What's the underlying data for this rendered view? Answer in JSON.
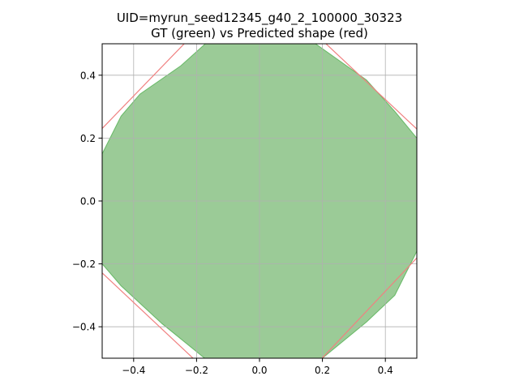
{
  "chart_data": {
    "type": "area",
    "title_lines": [
      "UID=myrun_seed12345_g40_2_100000_30323",
      "GT (green) vs Predicted shape (red)"
    ],
    "xlabel": "",
    "ylabel": "",
    "xlim": [
      -0.5,
      0.5
    ],
    "ylim": [
      -0.5,
      0.5
    ],
    "grid": true,
    "x_ticks": [
      -0.4,
      -0.2,
      0.0,
      0.2,
      0.4
    ],
    "y_ticks": [
      -0.4,
      -0.2,
      0.0,
      0.2,
      0.4
    ],
    "x_tick_labels": [
      "−0.4",
      "−0.2",
      "0.0",
      "0.2",
      "0.4"
    ],
    "y_tick_labels": [
      "−0.4",
      "−0.2",
      "0.0",
      "0.2",
      "0.4"
    ],
    "series": [
      {
        "role": "ground-truth",
        "style": "filled",
        "color": "#2ca02c",
        "fill_color": "#9bcb97",
        "points": [
          [
            -0.15,
            0.52
          ],
          [
            0.15,
            0.52
          ],
          [
            0.34,
            0.385
          ],
          [
            0.43,
            0.285
          ],
          [
            0.5,
            0.2
          ],
          [
            0.52,
            0.0
          ],
          [
            0.5,
            -0.16
          ],
          [
            0.43,
            -0.3
          ],
          [
            0.34,
            -0.385
          ],
          [
            0.2,
            -0.5
          ],
          [
            -0.15,
            -0.52
          ],
          [
            -0.31,
            -0.39
          ],
          [
            -0.44,
            -0.27
          ],
          [
            -0.5,
            -0.2
          ],
          [
            -0.52,
            0.0
          ],
          [
            -0.5,
            0.15
          ],
          [
            -0.44,
            0.27
          ],
          [
            -0.38,
            0.34
          ],
          [
            -0.25,
            0.43
          ]
        ]
      },
      {
        "role": "prediction",
        "style": "outline",
        "color": "#f08080",
        "points": [
          [
            -0.22,
            0.52
          ],
          [
            0.19,
            0.52
          ],
          [
            0.52,
            0.21
          ],
          [
            0.52,
            -0.16
          ],
          [
            0.18,
            -0.52
          ],
          [
            -0.19,
            -0.52
          ],
          [
            -0.52,
            -0.21
          ],
          [
            -0.52,
            0.21
          ]
        ]
      }
    ]
  }
}
